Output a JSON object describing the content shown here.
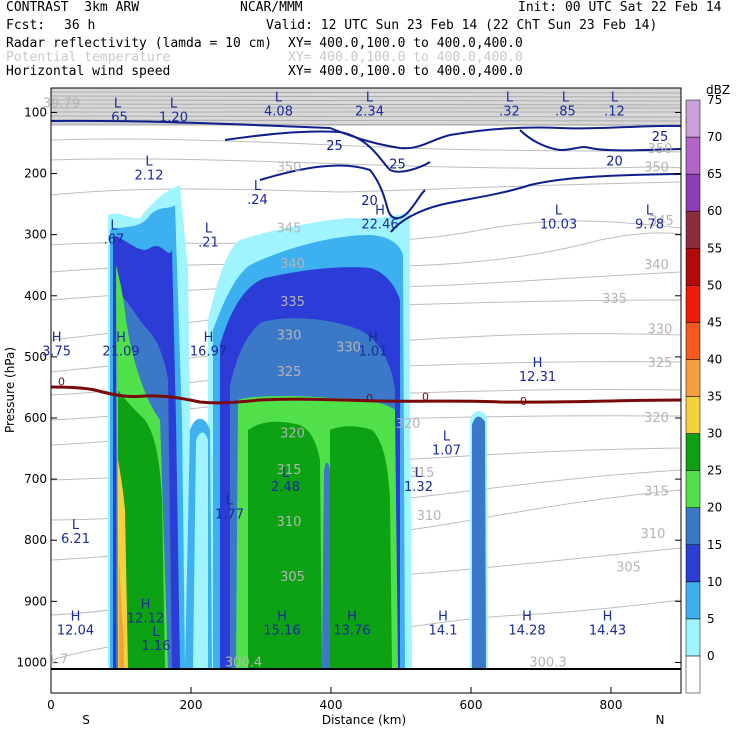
{
  "header": {
    "model": "CONTRAST  3km ARW",
    "org": "NCAR/MMM",
    "init": "Init: 00 UTC Sat 22 Feb 14",
    "fcst_label": "Fcst:",
    "fcst_value": "36 h",
    "valid": "Valid: 12 UTC Sun 23 Feb 14 (22 ChT Sun 23 Feb 14)",
    "fields": [
      {
        "name": "Radar reflectivity (lamda = 10 cm)",
        "xy": "XY= 400.0,100.0 to 400.0,400.0",
        "faint": false
      },
      {
        "name": "Potential temperature",
        "xy": "XY= 400.0,100.0 to 400.0,400.0",
        "faint": true
      },
      {
        "name": "Horizontal wind speed",
        "xy": "XY= 400.0,100.0 to 400.0,400.0",
        "faint": false
      }
    ]
  },
  "colors": {
    "reflectivity": [
      "#ffffff",
      "#9ff4ff",
      "#3db0f0",
      "#2c3cd6",
      "#3c78c8",
      "#50e14a",
      "#0ca214",
      "#f5d23c",
      "#f5a03c",
      "#f55a1e",
      "#f0190a",
      "#b40a0a",
      "#8c2d3c",
      "#8c3cb4",
      "#b464c8",
      "#c8a0dc"
    ],
    "wind_contour": "#0f1e8c",
    "theta_contour": "#b4b4b4",
    "freezing_line": "#7a0a0a"
  },
  "chart_data": {
    "type": "heatmap",
    "xlabel": "Distance (km)",
    "ylabel": "Pressure (hPa)",
    "xlim": [
      0,
      900
    ],
    "ylim": [
      1050,
      60
    ],
    "x_ticks": [
      "0",
      "200",
      "400",
      "600",
      "800"
    ],
    "x_tick_values": [
      0,
      200,
      400,
      600,
      800
    ],
    "y_ticks": [
      "100",
      "200",
      "300",
      "400",
      "500",
      "600",
      "700",
      "800",
      "900",
      "1000"
    ],
    "y_tick_values": [
      100,
      200,
      300,
      400,
      500,
      600,
      700,
      800,
      900,
      1000
    ],
    "direction_left": "S",
    "direction_right": "N",
    "colorbar": {
      "unit": "dBZ",
      "levels": [
        "0",
        "5",
        "10",
        "15",
        "20",
        "25",
        "30",
        "35",
        "40",
        "45",
        "50",
        "55",
        "60",
        "65",
        "70",
        "75"
      ]
    },
    "wind_contour_labels": [
      {
        "text": "25",
        "x": 405,
        "p": 155
      },
      {
        "text": "25",
        "x": 495,
        "p": 185
      },
      {
        "text": "20",
        "x": 455,
        "p": 245
      },
      {
        "text": "20",
        "x": 805,
        "p": 180
      },
      {
        "text": "25",
        "x": 870,
        "p": 140
      }
    ],
    "theta_contour_labels": [
      {
        "text": "350",
        "x": 340,
        "p": 190
      },
      {
        "text": "345",
        "x": 340,
        "p": 290
      },
      {
        "text": "340",
        "x": 345,
        "p": 348
      },
      {
        "text": "335",
        "x": 345,
        "p": 410
      },
      {
        "text": "330",
        "x": 340,
        "p": 465
      },
      {
        "text": "330",
        "x": 425,
        "p": 485
      },
      {
        "text": "325",
        "x": 340,
        "p": 525
      },
      {
        "text": "320",
        "x": 345,
        "p": 625
      },
      {
        "text": "320",
        "x": 510,
        "p": 610
      },
      {
        "text": "315",
        "x": 340,
        "p": 685
      },
      {
        "text": "315",
        "x": 530,
        "p": 690
      },
      {
        "text": "310",
        "x": 340,
        "p": 770
      },
      {
        "text": "310",
        "x": 540,
        "p": 760
      },
      {
        "text": "305",
        "x": 345,
        "p": 860
      },
      {
        "text": "305",
        "x": 825,
        "p": 845
      },
      {
        "text": "350",
        "x": 870,
        "p": 160
      },
      {
        "text": "350",
        "x": 865,
        "p": 190
      },
      {
        "text": "345",
        "x": 872,
        "p": 278
      },
      {
        "text": "340",
        "x": 865,
        "p": 350
      },
      {
        "text": "335",
        "x": 805,
        "p": 405
      },
      {
        "text": "330",
        "x": 870,
        "p": 455
      },
      {
        "text": "325",
        "x": 870,
        "p": 510
      },
      {
        "text": "320",
        "x": 865,
        "p": 600
      },
      {
        "text": "315",
        "x": 865,
        "p": 720
      },
      {
        "text": "310",
        "x": 860,
        "p": 790
      },
      {
        "text": "300.4",
        "x": 275,
        "p": 1000
      },
      {
        "text": "300.3",
        "x": 710,
        "p": 1000
      },
      {
        "text": "39.79",
        "x": 15,
        "p": 85
      },
      {
        "text": "1.7",
        "x": 10,
        "p": 995
      }
    ],
    "highs_lows": [
      {
        "type": "L",
        "value": ".65",
        "x": 95,
        "p": 95
      },
      {
        "type": "L",
        "value": "1.20",
        "x": 175,
        "p": 95
      },
      {
        "type": "L",
        "value": "4.08",
        "x": 325,
        "p": 85
      },
      {
        "type": "L",
        "value": "2.34",
        "x": 455,
        "p": 85
      },
      {
        "type": "L",
        "value": ".32",
        "x": 655,
        "p": 85
      },
      {
        "type": "L",
        "value": ".85",
        "x": 735,
        "p": 85
      },
      {
        "type": "L",
        "value": ".12",
        "x": 805,
        "p": 85
      },
      {
        "type": "L",
        "value": "2.12",
        "x": 140,
        "p": 190
      },
      {
        "type": "L",
        "value": ".24",
        "x": 295,
        "p": 230
      },
      {
        "type": "H",
        "value": "22.46",
        "x": 470,
        "p": 270
      },
      {
        "type": "L",
        "value": "10.03",
        "x": 725,
        "p": 270
      },
      {
        "type": "L",
        "value": "9.78",
        "x": 855,
        "p": 270
      },
      {
        "type": "L",
        "value": ".67",
        "x": 90,
        "p": 295
      },
      {
        "type": "L",
        "value": ".21",
        "x": 225,
        "p": 300
      },
      {
        "type": "H",
        "value": "21.09",
        "x": 100,
        "p": 478
      },
      {
        "type": "H",
        "value": "16.97",
        "x": 225,
        "p": 478
      },
      {
        "type": "H",
        "value": "1.01",
        "x": 460,
        "p": 478
      },
      {
        "type": "H",
        "value": "12.31",
        "x": 695,
        "p": 520
      },
      {
        "type": "H",
        "value": "3.75",
        "x": 8,
        "p": 478
      },
      {
        "type": "L",
        "value": "1.07",
        "x": 565,
        "p": 640
      },
      {
        "type": "L",
        "value": "2.48",
        "x": 335,
        "p": 700
      },
      {
        "type": "L",
        "value": "1.32",
        "x": 525,
        "p": 700
      },
      {
        "type": "L",
        "value": "1.77",
        "x": 255,
        "p": 745
      },
      {
        "type": "L",
        "value": "6.21",
        "x": 35,
        "p": 785
      },
      {
        "type": "H",
        "value": "12.12",
        "x": 135,
        "p": 915
      },
      {
        "type": "L",
        "value": "1.16",
        "x": 150,
        "p": 960
      },
      {
        "type": "H",
        "value": "12.04",
        "x": 35,
        "p": 935
      },
      {
        "type": "H",
        "value": "15.16",
        "x": 330,
        "p": 935
      },
      {
        "type": "H",
        "value": "13.76",
        "x": 430,
        "p": 935
      },
      {
        "type": "H",
        "value": "14.1",
        "x": 560,
        "p": 935
      },
      {
        "type": "H",
        "value": "14.28",
        "x": 680,
        "p": 935
      },
      {
        "type": "H",
        "value": "14.43",
        "x": 795,
        "p": 935
      }
    ],
    "freezing_labels": [
      {
        "text": "0",
        "x": 15,
        "p": 540
      },
      {
        "text": "0",
        "x": 455,
        "p": 567
      },
      {
        "text": "0",
        "x": 535,
        "p": 565
      },
      {
        "text": "0",
        "x": 675,
        "p": 572
      }
    ]
  }
}
